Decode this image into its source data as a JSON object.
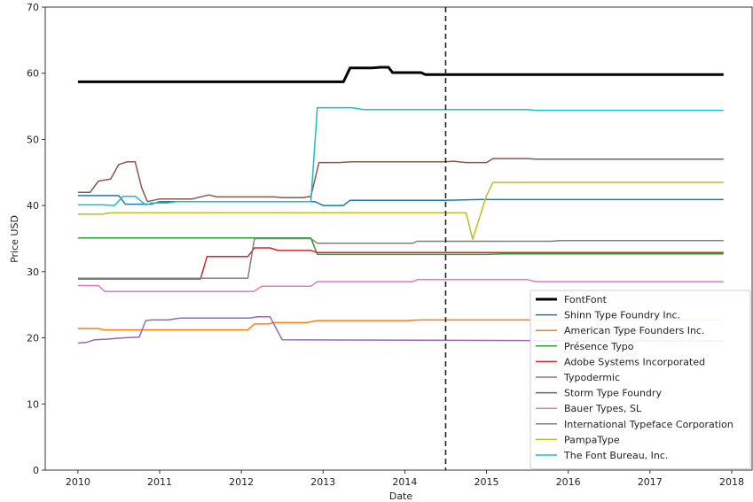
{
  "chart_data": {
    "type": "line",
    "title": "",
    "xlabel": "Date",
    "ylabel": "Price USD",
    "xlim": [
      2009.6,
      2018.25
    ],
    "ylim": [
      0,
      70
    ],
    "xticks": [
      2010,
      2011,
      2012,
      2013,
      2014,
      2015,
      2016,
      2017,
      2018
    ],
    "yticks": [
      0,
      10,
      20,
      30,
      40,
      50,
      60,
      70
    ],
    "grid": false,
    "legend_position": "lower-right",
    "vline": {
      "x": 2014.5,
      "style": "dashed"
    },
    "series": [
      {
        "name": "FontFont",
        "color": "#000000",
        "bold": true,
        "points": [
          [
            2010,
            58.7
          ],
          [
            2013.25,
            58.7
          ],
          [
            2013.33,
            60.8
          ],
          [
            2013.6,
            60.8
          ],
          [
            2013.7,
            60.9
          ],
          [
            2013.8,
            60.9
          ],
          [
            2013.85,
            60.1
          ],
          [
            2014.2,
            60.1
          ],
          [
            2014.25,
            59.8
          ],
          [
            2017.9,
            59.8
          ]
        ]
      },
      {
        "name": "Shinn Type Foundry Inc.",
        "color": "#1f77b4",
        "points": [
          [
            2010,
            41.5
          ],
          [
            2010.5,
            41.5
          ],
          [
            2010.58,
            40.2
          ],
          [
            2010.9,
            40.2
          ],
          [
            2011,
            40.6
          ],
          [
            2012.9,
            40.6
          ],
          [
            2013,
            40
          ],
          [
            2013.25,
            40
          ],
          [
            2013.33,
            40.8
          ],
          [
            2014.5,
            40.8
          ],
          [
            2014.9,
            40.9
          ],
          [
            2017.9,
            40.9
          ]
        ]
      },
      {
        "name": "American Type Founders Inc.",
        "color": "#ff7f0e",
        "points": [
          [
            2010,
            21.4
          ],
          [
            2010.25,
            21.4
          ],
          [
            2010.33,
            21.2
          ],
          [
            2012.08,
            21.2
          ],
          [
            2012.16,
            22.1
          ],
          [
            2012.33,
            22.1
          ],
          [
            2012.4,
            22.3
          ],
          [
            2012.8,
            22.3
          ],
          [
            2012.92,
            22.6
          ],
          [
            2014,
            22.6
          ],
          [
            2014.2,
            22.7
          ],
          [
            2017.9,
            22.7
          ]
        ]
      },
      {
        "name": "Présence Typo",
        "color": "#2ca02c",
        "points": [
          [
            2010,
            35.1
          ],
          [
            2012.85,
            35.1
          ],
          [
            2012.93,
            32.6
          ],
          [
            2015,
            32.6
          ],
          [
            2015.2,
            32.7
          ],
          [
            2017.9,
            32.7
          ]
        ]
      },
      {
        "name": "Adobe Systems Incorporated",
        "color": "#d62728",
        "points": [
          [
            2010,
            28.9
          ],
          [
            2011.5,
            28.9
          ],
          [
            2011.58,
            32.3
          ],
          [
            2012.08,
            32.3
          ],
          [
            2012.16,
            33.6
          ],
          [
            2012.35,
            33.6
          ],
          [
            2012.45,
            33.2
          ],
          [
            2012.85,
            33.2
          ],
          [
            2012.93,
            32.9
          ],
          [
            2017.9,
            32.9
          ]
        ]
      },
      {
        "name": "Typodermic",
        "color": "#9467bd",
        "points": [
          [
            2010,
            19.2
          ],
          [
            2010.1,
            19.3
          ],
          [
            2010.2,
            19.7
          ],
          [
            2010.35,
            19.8
          ],
          [
            2010.55,
            20
          ],
          [
            2010.75,
            20.1
          ],
          [
            2010.83,
            22.6
          ],
          [
            2010.9,
            22.7
          ],
          [
            2011.1,
            22.7
          ],
          [
            2011.25,
            23
          ],
          [
            2012.1,
            23
          ],
          [
            2012.2,
            23.2
          ],
          [
            2012.35,
            23.2
          ],
          [
            2012.5,
            19.7
          ],
          [
            2017.9,
            19.5
          ]
        ]
      },
      {
        "name": "Storm Type Foundry",
        "color": "#8c564b",
        "points": [
          [
            2010,
            42
          ],
          [
            2010.15,
            42
          ],
          [
            2010.25,
            43.7
          ],
          [
            2010.4,
            44
          ],
          [
            2010.5,
            46.2
          ],
          [
            2010.6,
            46.6
          ],
          [
            2010.7,
            46.6
          ],
          [
            2010.78,
            42.7
          ],
          [
            2010.85,
            40.6
          ],
          [
            2011,
            41
          ],
          [
            2011.4,
            41
          ],
          [
            2011.6,
            41.6
          ],
          [
            2011.7,
            41.3
          ],
          [
            2012.4,
            41.3
          ],
          [
            2012.5,
            41.2
          ],
          [
            2012.75,
            41.2
          ],
          [
            2012.85,
            41.4
          ],
          [
            2012.95,
            46.5
          ],
          [
            2013.2,
            46.5
          ],
          [
            2013.35,
            46.6
          ],
          [
            2014.5,
            46.6
          ],
          [
            2014.6,
            46.7
          ],
          [
            2014.75,
            46.5
          ],
          [
            2015,
            46.5
          ],
          [
            2015.08,
            47.1
          ],
          [
            2015.5,
            47.1
          ],
          [
            2015.6,
            47
          ],
          [
            2017.9,
            47
          ]
        ]
      },
      {
        "name": "Bauer Types, SL",
        "color": "#e377c2",
        "points": [
          [
            2010,
            27.9
          ],
          [
            2010.25,
            27.9
          ],
          [
            2010.33,
            27
          ],
          [
            2012.15,
            27
          ],
          [
            2012.25,
            27.8
          ],
          [
            2012.85,
            27.8
          ],
          [
            2012.93,
            28.5
          ],
          [
            2014.1,
            28.5
          ],
          [
            2014.15,
            28.8
          ],
          [
            2015.5,
            28.8
          ],
          [
            2015.6,
            28.5
          ],
          [
            2017.9,
            28.5
          ]
        ]
      },
      {
        "name": "International Typeface Corporation",
        "color": "#7f7f7f",
        "points": [
          [
            2010,
            29
          ],
          [
            2012.08,
            29
          ],
          [
            2012.16,
            35
          ],
          [
            2012.85,
            35
          ],
          [
            2012.93,
            34.3
          ],
          [
            2014.1,
            34.3
          ],
          [
            2014.15,
            34.6
          ],
          [
            2015.8,
            34.6
          ],
          [
            2015.9,
            34.7
          ],
          [
            2017.9,
            34.7
          ]
        ]
      },
      {
        "name": "PampaType",
        "color": "#bcbd22",
        "points": [
          [
            2010,
            38.7
          ],
          [
            2010.3,
            38.7
          ],
          [
            2010.4,
            38.9
          ],
          [
            2014.75,
            38.9
          ],
          [
            2014.83,
            34.9
          ],
          [
            2015,
            41.5
          ],
          [
            2015.08,
            43.5
          ],
          [
            2017.9,
            43.5
          ]
        ]
      },
      {
        "name": "The Font Bureau, Inc.",
        "color": "#17becf",
        "points": [
          [
            2010,
            40.1
          ],
          [
            2010.3,
            40.1
          ],
          [
            2010.45,
            40
          ],
          [
            2010.55,
            41.4
          ],
          [
            2010.7,
            41.4
          ],
          [
            2010.83,
            40.1
          ],
          [
            2010.9,
            40.4
          ],
          [
            2011.1,
            40.4
          ],
          [
            2011.2,
            40.6
          ],
          [
            2012.85,
            40.6
          ],
          [
            2012.93,
            54.8
          ],
          [
            2013.35,
            54.8
          ],
          [
            2013.5,
            54.5
          ],
          [
            2015.5,
            54.5
          ],
          [
            2015.6,
            54.4
          ],
          [
            2017.9,
            54.4
          ]
        ]
      }
    ]
  }
}
